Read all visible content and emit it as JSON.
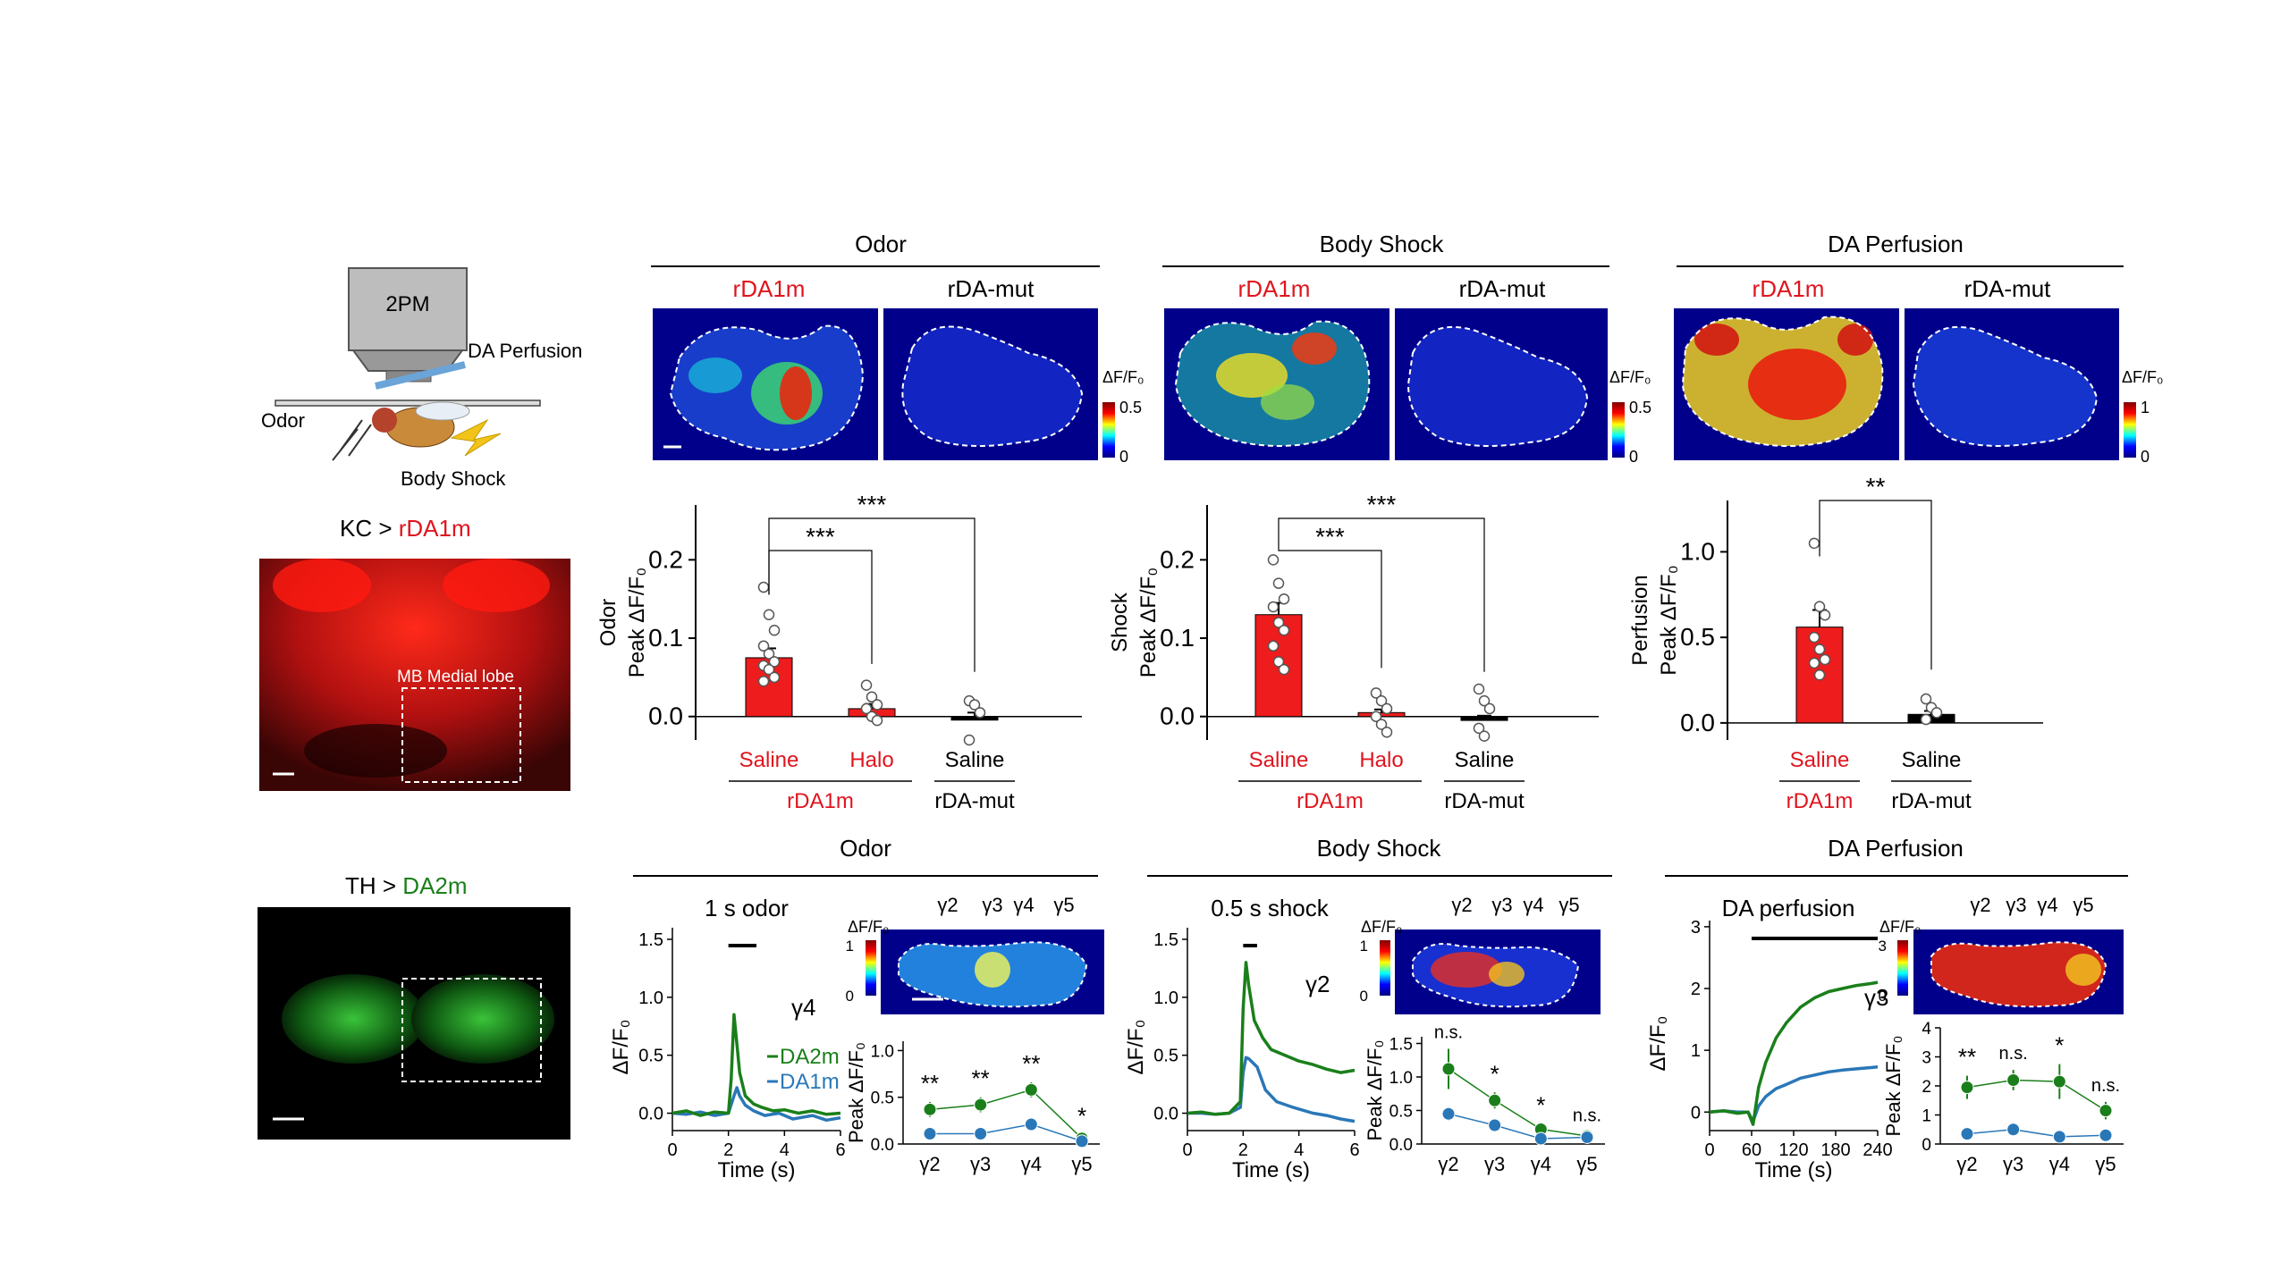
{
  "colors": {
    "rDA1m": "#e0141e",
    "DA2m": "#1a7f1a",
    "DA1m": "#2a77b8",
    "black": "#000000",
    "bar_red": "#ee1c1c"
  },
  "setup": {
    "microscope": "2PM",
    "perfusion": "DA Perfusion",
    "odor": "Odor",
    "shock": "Body Shock"
  },
  "kc_panel": {
    "title_prefix": "KC > ",
    "title_sensor": "rDA1m",
    "roi_label": "MB Medial lobe"
  },
  "th_panel": {
    "title_prefix": "TH > ",
    "title_sensor": "DA2m"
  },
  "top_groups": [
    {
      "title": "Odor",
      "left": "rDA1m",
      "right": "rDA-mut",
      "scale_label": "ΔF/F₀",
      "scale_max": "0.5",
      "scale_min": "0"
    },
    {
      "title": "Body Shock",
      "left": "rDA1m",
      "right": "rDA-mut",
      "scale_label": "ΔF/F₀",
      "scale_max": "0.5",
      "scale_min": "0"
    },
    {
      "title": "DA Perfusion",
      "left": "rDA1m",
      "right": "rDA-mut",
      "scale_label": "ΔF/F₀",
      "scale_max": "1",
      "scale_min": "0"
    }
  ],
  "bottom_groups": [
    {
      "title": "Odor",
      "trace_title": "1 s odor",
      "gamma_header": [
        "γ2",
        "γ3",
        "γ4",
        "γ5"
      ],
      "scale_label": "ΔF/F₀",
      "scale_max": "1",
      "scale_min": "0",
      "trace_label": "γ4"
    },
    {
      "title": "Body Shock",
      "trace_title": "0.5 s shock",
      "gamma_header": [
        "γ2",
        "γ3",
        "γ4",
        "γ5"
      ],
      "scale_label": "ΔF/F₀",
      "scale_max": "1",
      "scale_min": "0",
      "trace_label": "γ2"
    },
    {
      "title": "DA Perfusion",
      "trace_title": "DA perfusion",
      "gamma_header": [
        "γ2",
        "γ3",
        "γ4",
        "γ5"
      ],
      "scale_label": "ΔF/F₀",
      "scale_max": "3",
      "scale_min": "0",
      "trace_label": "γ3"
    }
  ],
  "chart_data": [
    {
      "type": "bar",
      "id": "odor_bar",
      "ylabel": "Odor\nPeak ΔF/F₀",
      "ylim": [
        -0.03,
        0.27
      ],
      "yticks": [
        "0.0",
        "0.1",
        "0.2"
      ],
      "categories": [
        "Saline",
        "Halo",
        "Saline"
      ],
      "values": [
        0.075,
        0.01,
        0.0
      ],
      "errors": [
        0.012,
        0.006,
        0.005
      ],
      "group_labels": [
        {
          "text": "rDA1m",
          "span": [
            0,
            1
          ]
        },
        {
          "text": "rDA-mut",
          "span": [
            2,
            2
          ]
        }
      ],
      "bar_colors": [
        "#ee1c1c",
        "#ee1c1c",
        "#000000"
      ],
      "label_colors": [
        "#e0141e",
        "#e0141e",
        "#000000"
      ],
      "points": [
        [
          0.165,
          0.13,
          0.11,
          0.09,
          0.08,
          0.07,
          0.065,
          0.06,
          0.05,
          0.045
        ],
        [
          0.04,
          0.025,
          0.015,
          0.01,
          0.0,
          -0.005
        ],
        [
          0.02,
          0.015,
          0.005,
          -0.03
        ]
      ],
      "significance": [
        {
          "from": 0,
          "to": 1,
          "label": "***"
        },
        {
          "from": 0,
          "to": 2,
          "label": "***"
        }
      ]
    },
    {
      "type": "bar",
      "id": "shock_bar",
      "ylabel": "Shock\nPeak ΔF/F₀",
      "ylim": [
        -0.03,
        0.27
      ],
      "yticks": [
        "0.0",
        "0.1",
        "0.2"
      ],
      "categories": [
        "Saline",
        "Halo",
        "Saline"
      ],
      "values": [
        0.13,
        0.005,
        -0.005
      ],
      "errors": [
        0.015,
        0.004,
        0.006
      ],
      "group_labels": [
        {
          "text": "rDA1m",
          "span": [
            0,
            1
          ]
        },
        {
          "text": "rDA-mut",
          "span": [
            2,
            2
          ]
        }
      ],
      "bar_colors": [
        "#ee1c1c",
        "#ee1c1c",
        "#000000"
      ],
      "label_colors": [
        "#e0141e",
        "#e0141e",
        "#000000"
      ],
      "points": [
        [
          0.2,
          0.17,
          0.15,
          0.14,
          0.12,
          0.11,
          0.09,
          0.07,
          0.06
        ],
        [
          0.03,
          0.02,
          0.01,
          0.0,
          -0.01,
          -0.02
        ],
        [
          0.035,
          0.02,
          0.01,
          -0.015,
          -0.025
        ]
      ],
      "significance": [
        {
          "from": 0,
          "to": 1,
          "label": "***"
        },
        {
          "from": 0,
          "to": 2,
          "label": "***"
        }
      ]
    },
    {
      "type": "bar",
      "id": "perfusion_bar",
      "ylabel": "Perfusion\nPeak ΔF/F₀",
      "ylim": [
        -0.1,
        1.3
      ],
      "yticks": [
        "0.0",
        "0.5",
        "1.0"
      ],
      "categories": [
        "Saline",
        "Saline"
      ],
      "values": [
        0.56,
        0.05
      ],
      "errors": [
        0.1,
        0.02
      ],
      "group_labels": [
        {
          "text": "rDA1m",
          "span": [
            0,
            0
          ]
        },
        {
          "text": "rDA-mut",
          "span": [
            1,
            1
          ]
        }
      ],
      "bar_colors": [
        "#ee1c1c",
        "#000000"
      ],
      "label_colors": [
        "#e0141e",
        "#000000"
      ],
      "points": [
        [
          1.05,
          0.68,
          0.63,
          0.5,
          0.43,
          0.37,
          0.35,
          0.28
        ],
        [
          0.14,
          0.09,
          0.06,
          0.02
        ]
      ],
      "significance": [
        {
          "from": 0,
          "to": 1,
          "label": "**"
        }
      ]
    },
    {
      "type": "line",
      "id": "odor_trace",
      "xlabel": "Time (s)",
      "ylabel": "ΔF/F₀",
      "xlim": [
        0,
        6
      ],
      "ylim": [
        -0.15,
        1.6
      ],
      "xticks": [
        0,
        2,
        4,
        6
      ],
      "yticks": [
        "0.0",
        "0.5",
        "1.0",
        "1.5"
      ],
      "stim": [
        2,
        3
      ],
      "series": [
        {
          "name": "DA2m",
          "color": "#1a7f1a",
          "x": [
            0,
            0.5,
            1,
            1.5,
            2,
            2.1,
            2.2,
            2.3,
            2.4,
            2.6,
            2.9,
            3.2,
            3.6,
            4,
            4.5,
            5,
            5.5,
            6
          ],
          "y": [
            0,
            0.02,
            -0.02,
            0.01,
            0.0,
            0.3,
            0.85,
            0.6,
            0.35,
            0.15,
            0.08,
            0.05,
            0.02,
            0.03,
            0.0,
            0.02,
            -0.01,
            0.0
          ]
        },
        {
          "name": "DA1m",
          "color": "#2a77b8",
          "x": [
            0,
            0.5,
            1,
            1.5,
            2,
            2.2,
            2.3,
            2.4,
            2.6,
            2.9,
            3.3,
            3.8,
            4.3,
            5,
            5.5,
            6
          ],
          "y": [
            0,
            -0.01,
            0.01,
            -0.02,
            0.0,
            0.15,
            0.22,
            0.15,
            0.07,
            0.02,
            -0.02,
            0.0,
            -0.05,
            -0.02,
            -0.06,
            -0.04
          ]
        }
      ]
    },
    {
      "type": "line",
      "id": "odor_peak",
      "xlabel": "",
      "ylabel": "Peak ΔF/F₀",
      "ylim": [
        0,
        1.1
      ],
      "categories": [
        "γ2",
        "γ3",
        "γ4",
        "γ5"
      ],
      "yticks": [
        "0.0",
        "0.5",
        "1.0"
      ],
      "series": [
        {
          "name": "DA2m",
          "color": "#1a7f1a",
          "values": [
            0.37,
            0.42,
            0.58,
            0.06
          ],
          "errors": [
            0.08,
            0.08,
            0.08,
            0.04
          ]
        },
        {
          "name": "DA1m",
          "color": "#2a77b8",
          "values": [
            0.11,
            0.11,
            0.21,
            0.03
          ],
          "errors": [
            0.03,
            0.03,
            0.04,
            0.02
          ]
        }
      ],
      "significance": [
        "**",
        "**",
        "**",
        "*"
      ]
    },
    {
      "type": "line",
      "id": "shock_trace",
      "xlabel": "Time (s)",
      "ylabel": "ΔF/F₀",
      "xlim": [
        0,
        6
      ],
      "ylim": [
        -0.15,
        1.6
      ],
      "xticks": [
        0,
        2,
        4,
        6
      ],
      "yticks": [
        "0.0",
        "0.5",
        "1.0",
        "1.5"
      ],
      "stim": [
        2,
        2.5
      ],
      "series": [
        {
          "name": "DA2m",
          "color": "#1a7f1a",
          "x": [
            0,
            0.5,
            1,
            1.5,
            1.9,
            2.0,
            2.1,
            2.2,
            2.4,
            2.7,
            3.0,
            3.5,
            4,
            4.5,
            5,
            5.5,
            6
          ],
          "y": [
            0,
            0.01,
            -0.01,
            0.0,
            0.1,
            0.9,
            1.3,
            1.1,
            0.8,
            0.65,
            0.55,
            0.5,
            0.45,
            0.42,
            0.38,
            0.35,
            0.37
          ]
        },
        {
          "name": "DA1m",
          "color": "#2a77b8",
          "x": [
            0,
            0.5,
            1,
            1.5,
            1.9,
            2.0,
            2.1,
            2.2,
            2.5,
            2.8,
            3.2,
            3.8,
            4.5,
            5,
            5.5,
            6
          ],
          "y": [
            0,
            0.0,
            -0.01,
            0.0,
            0.05,
            0.35,
            0.48,
            0.47,
            0.4,
            0.2,
            0.1,
            0.05,
            0.0,
            -0.02,
            -0.05,
            -0.07
          ]
        }
      ]
    },
    {
      "type": "line",
      "id": "shock_peak",
      "xlabel": "",
      "ylabel": "Peak ΔF/F₀",
      "ylim": [
        0,
        1.6
      ],
      "categories": [
        "γ2",
        "γ3",
        "γ4",
        "γ5"
      ],
      "yticks": [
        "0.0",
        "0.5",
        "1.0",
        "1.5"
      ],
      "series": [
        {
          "name": "DA2m",
          "color": "#1a7f1a",
          "values": [
            1.12,
            0.65,
            0.22,
            0.12
          ],
          "errors": [
            0.3,
            0.12,
            0.08,
            0.06
          ]
        },
        {
          "name": "DA1m",
          "color": "#2a77b8",
          "values": [
            0.45,
            0.28,
            0.08,
            0.1
          ],
          "errors": [
            0.1,
            0.06,
            0.04,
            0.04
          ]
        }
      ],
      "significance": [
        "n.s.",
        "*",
        "*",
        "n.s."
      ]
    },
    {
      "type": "line",
      "id": "perfusion_trace",
      "xlabel": "Time (s)",
      "ylabel": "ΔF/F₀",
      "xlim": [
        0,
        240
      ],
      "ylim": [
        -0.3,
        3.1
      ],
      "xticks": [
        0,
        60,
        120,
        180,
        240
      ],
      "yticks": [
        "0",
        "1",
        "2",
        "3"
      ],
      "stim": [
        60,
        240
      ],
      "series": [
        {
          "name": "DA2m",
          "color": "#1a7f1a",
          "x": [
            0,
            20,
            40,
            55,
            62,
            70,
            80,
            95,
            110,
            130,
            150,
            170,
            190,
            210,
            230,
            240
          ],
          "y": [
            0,
            0.02,
            -0.02,
            0.0,
            -0.2,
            0.4,
            0.8,
            1.2,
            1.45,
            1.7,
            1.85,
            1.95,
            2.0,
            2.05,
            2.08,
            2.1
          ]
        },
        {
          "name": "DA1m",
          "color": "#2a77b8",
          "x": [
            0,
            20,
            40,
            55,
            62,
            70,
            80,
            95,
            110,
            130,
            150,
            170,
            190,
            210,
            230,
            240
          ],
          "y": [
            0,
            0.02,
            0.0,
            0.0,
            -0.15,
            0.1,
            0.25,
            0.38,
            0.45,
            0.55,
            0.6,
            0.65,
            0.68,
            0.7,
            0.72,
            0.73
          ]
        }
      ]
    },
    {
      "type": "line",
      "id": "perfusion_peak",
      "xlabel": "",
      "ylabel": "Peak ΔF/F₀",
      "ylim": [
        0,
        4
      ],
      "categories": [
        "γ2",
        "γ3",
        "γ4",
        "γ5"
      ],
      "yticks": [
        "0",
        "1",
        "2",
        "3",
        "4"
      ],
      "series": [
        {
          "name": "DA2m",
          "color": "#1a7f1a",
          "values": [
            1.95,
            2.2,
            2.15,
            1.15
          ],
          "errors": [
            0.4,
            0.35,
            0.6,
            0.3
          ]
        },
        {
          "name": "DA1m",
          "color": "#2a77b8",
          "values": [
            0.35,
            0.5,
            0.25,
            0.3
          ],
          "errors": [
            0.1,
            0.2,
            0.1,
            0.1
          ]
        }
      ],
      "significance": [
        "**",
        "n.s.",
        "*",
        "n.s."
      ]
    }
  ]
}
